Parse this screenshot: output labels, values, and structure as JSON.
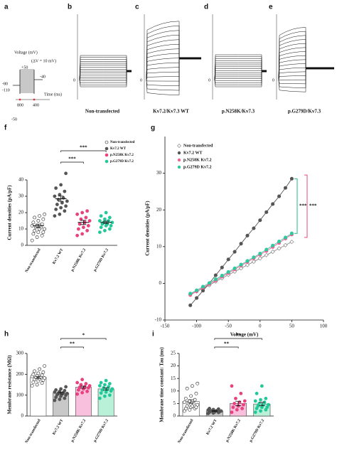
{
  "protocol": {
    "letter": "a",
    "title": "Voltage (mV)",
    "step": "(ΔV = 10 mV)",
    "labels": [
      "+50",
      "-40",
      "-80",
      "-110",
      "-50"
    ],
    "times": [
      "800",
      "400"
    ],
    "time_axis": "Time (ms)"
  },
  "traces": [
    {
      "letter": "b",
      "label": "Non-transfected",
      "zero": "0"
    },
    {
      "letter": "c",
      "label": "Kv7.2/Kv7.3 WT",
      "zero": "0"
    },
    {
      "letter": "d",
      "label": "p.N258K/Kv7.3",
      "zero": "0"
    },
    {
      "letter": "e",
      "label": "p.G279D/Kv7.3",
      "zero": "0"
    }
  ],
  "chart_data": [
    {
      "type": "dot",
      "letter": "f",
      "ylabel": "Current densities (pA/pF)",
      "categories": [
        "Non-transfected",
        "Kv7.2 WT",
        "p.N258K Kv7.2",
        "p.G279D Kv7.2"
      ],
      "values": [
        12,
        28.5,
        14,
        14
      ],
      "sem": [
        1,
        1.6,
        1.3,
        0.8
      ],
      "points": [
        [
          3,
          5,
          6,
          7,
          8,
          8,
          9,
          10,
          10,
          11,
          11,
          12,
          12,
          13,
          14,
          15,
          16,
          17,
          18,
          19
        ],
        [
          18,
          19,
          21,
          22,
          23,
          24,
          25,
          26,
          27,
          28,
          29,
          30,
          31,
          33,
          35,
          37,
          44
        ],
        [
          6,
          7,
          9,
          10,
          11,
          12,
          13,
          14,
          15,
          16,
          17,
          19,
          20,
          21
        ],
        [
          8,
          9,
          10,
          11,
          12,
          12,
          13,
          13,
          14,
          14,
          15,
          15,
          16,
          17,
          18,
          20
        ]
      ],
      "colors": [
        "#ffffff",
        "#555555",
        "#e8417e",
        "#22c89a"
      ],
      "ylim": [
        0,
        40
      ],
      "yticks": [
        0,
        10,
        20,
        30,
        40
      ],
      "legend": "upper right",
      "significance": [
        "***",
        "***"
      ]
    },
    {
      "type": "line",
      "letter": "g",
      "xlabel": "Voltage (mV)",
      "ylabel": "Current densities (pA/pF)",
      "x": [
        -110,
        -100,
        -90,
        -80,
        -70,
        -60,
        -50,
        -40,
        -30,
        -20,
        -10,
        0,
        10,
        20,
        30,
        40,
        50
      ],
      "series": [
        {
          "name": "Non-transfected",
          "color": "#888888",
          "values": [
            -3,
            -2.2,
            -1.4,
            -0.5,
            0.5,
            1.4,
            2.3,
            3.2,
            4.1,
            5,
            5.9,
            6.8,
            7.7,
            8.6,
            9.5,
            10.4,
            11.3
          ]
        },
        {
          "name": "Kv7.2 WT",
          "color": "#555555",
          "values": [
            -6,
            -4,
            -2,
            0,
            2.2,
            4.3,
            6.5,
            8.6,
            10.8,
            13,
            15,
            17.2,
            19.4,
            21.6,
            23.7,
            26,
            28.5
          ]
        },
        {
          "name": "p.N258K Kv7.2",
          "color": "#f06090",
          "values": [
            -3.2,
            -2.2,
            -1.2,
            -0.2,
            0.8,
            1.8,
            2.8,
            3.8,
            4.8,
            5.8,
            6.8,
            7.8,
            8.8,
            9.9,
            11,
            12.2,
            13.3
          ]
        },
        {
          "name": "p.G279D Kv7.2",
          "color": "#30c8a0",
          "values": [
            -2.8,
            -1.9,
            -0.9,
            0.1,
            1.1,
            2.1,
            3.1,
            4.1,
            5.1,
            6.1,
            7.1,
            8.1,
            9.2,
            10.3,
            11.4,
            12.5,
            13.6
          ]
        }
      ],
      "xlim": [
        -150,
        100
      ],
      "xticks": [
        -150,
        -100,
        -50,
        0,
        50,
        100
      ],
      "ylim": [
        -10,
        40
      ],
      "yticks": [
        -10,
        0,
        10,
        20,
        30
      ],
      "legend": "upper left",
      "significance": [
        {
          "label": "***",
          "color": "#22b888"
        },
        {
          "label": "***",
          "color": "#e84a7f"
        }
      ]
    },
    {
      "type": "bar",
      "letter": "h",
      "ylabel": "Membrane resistance (MΩ)",
      "categories": [
        "Non-transfected",
        "Kv7.2 WT",
        "p.N258K Kv7.2",
        "p.G279D Kv7.2"
      ],
      "values": [
        185,
        110,
        138,
        130
      ],
      "sem": [
        5,
        4.5,
        5,
        6
      ],
      "points": [
        [
          145,
          150,
          158,
          162,
          168,
          172,
          175,
          178,
          182,
          185,
          188,
          190,
          193,
          196,
          200,
          205,
          210,
          215,
          225,
          240
        ],
        [
          75,
          80,
          85,
          90,
          95,
          100,
          102,
          105,
          108,
          110,
          112,
          115,
          118,
          122,
          125,
          130,
          140
        ],
        [
          105,
          112,
          118,
          125,
          130,
          135,
          138,
          140,
          145,
          150,
          155,
          160,
          175
        ],
        [
          85,
          95,
          100,
          110,
          115,
          120,
          125,
          128,
          130,
          135,
          140,
          145,
          150,
          155,
          160,
          170
        ]
      ],
      "colors": [
        "#ffffff",
        "#555555",
        "#e8417e",
        "#22c89a"
      ],
      "bar_colors": [
        "#ffffff",
        "#c8c8c8",
        "#f8c0dc",
        "#b8f0d8"
      ],
      "ylim": [
        0,
        300
      ],
      "yticks": [
        0,
        100,
        200,
        300
      ],
      "significance": [
        "**",
        "*"
      ]
    },
    {
      "type": "bar",
      "letter": "i",
      "ylabel": "Membrane time constant: Tau (ms)",
      "categories": [
        "Non-transfected",
        "Kv7.2 WT",
        "p.N258K Kv7.2",
        "p.G279D Kv7.2"
      ],
      "values": [
        5.8,
        2,
        5,
        4.8
      ],
      "sem": [
        0.7,
        0.15,
        0.9,
        0.7
      ],
      "points": [
        [
          2,
          2.5,
          3,
          3,
          3.5,
          3.5,
          4,
          4,
          4.5,
          5,
          5,
          5.5,
          6,
          6.5,
          7,
          8,
          9,
          11,
          12,
          13
        ],
        [
          1,
          1.2,
          1.4,
          1.5,
          1.6,
          1.8,
          1.9,
          2,
          2,
          2.1,
          2.2,
          2.4,
          2.6,
          2.8,
          3
        ],
        [
          1.5,
          2.5,
          3,
          3.5,
          4,
          4.5,
          5,
          5.5,
          6,
          7,
          9,
          12
        ],
        [
          1.5,
          2,
          2.5,
          3,
          3.5,
          3.5,
          4,
          4.5,
          4.5,
          5,
          5.5,
          6,
          6.5,
          7,
          9,
          12
        ]
      ],
      "colors": [
        "#ffffff",
        "#555555",
        "#e8417e",
        "#22c89a"
      ],
      "bar_colors": [
        "#ffffff",
        "#c8c8c8",
        "#f8c0dc",
        "#b8f0d8"
      ],
      "ylim": [
        0,
        25
      ],
      "yticks": [
        0,
        5,
        10,
        15,
        20,
        25
      ],
      "significance": [
        "**",
        "**"
      ]
    }
  ]
}
